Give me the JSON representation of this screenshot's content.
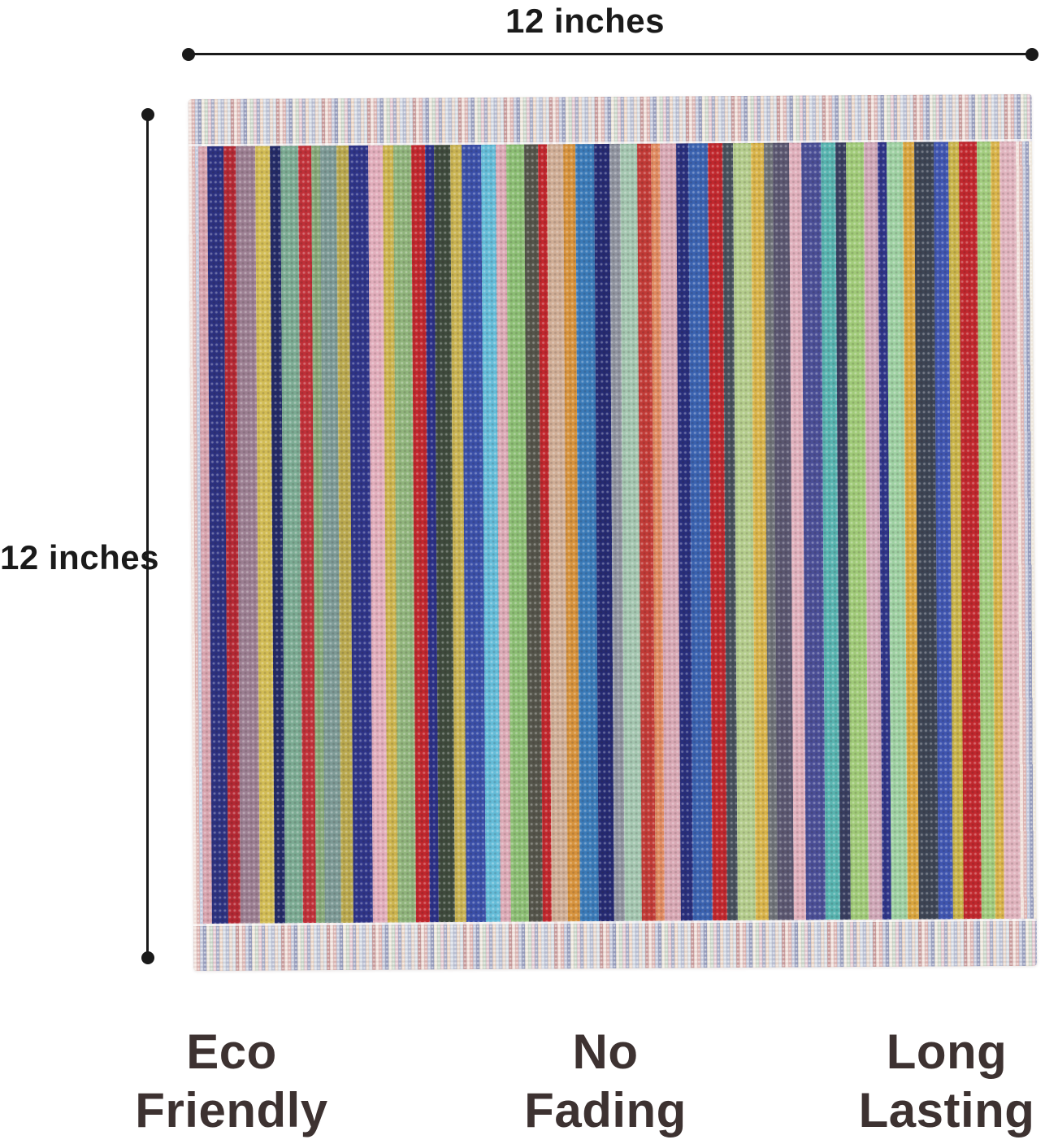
{
  "dimensions": {
    "width_label": "12 inches",
    "height_label": "12 inches"
  },
  "features": [
    {
      "line1": "Eco",
      "line2": "Friendly"
    },
    {
      "line1": "No",
      "line2": "Fading"
    },
    {
      "line1": "Long",
      "line2": "Lasting"
    }
  ],
  "colors": {
    "background": "#ffffff",
    "dimension_ink": "#1a1a1a",
    "feature_text": "#3d3231"
  },
  "towel": {
    "hem_stripes": [
      "#e9d2ca",
      "#cf9490",
      "#a8b0cc",
      "#666f9e",
      "#e6dccb",
      "#b2c6b2",
      "#d8b0bc",
      "#8088ae",
      "#e3c3ac",
      "#bfc8d8",
      "#99a2c0",
      "#dcc4b4",
      "#c4ced8",
      "#b06a6a"
    ],
    "terry_stripes": [
      "#d8a4ae",
      "#2c3180",
      "#b42833",
      "#9c7f92",
      "#d2bc55",
      "#232a66",
      "#7cab93",
      "#c03038",
      "#86a878",
      "#7d9a96",
      "#b9a84e",
      "#2e3488",
      "#e2aebc",
      "#ccb44e",
      "#90b47c",
      "#c1272d",
      "#2b3086",
      "#3e4a3c",
      "#c9b352",
      "#3a4fa8",
      "#64bcd8",
      "#dcaab6",
      "#8cbe74",
      "#54544a",
      "#c1272d",
      "#d0ae96",
      "#d6923c",
      "#3a7ab8",
      "#252a72",
      "#9094a0",
      "#a4c6b0",
      "#c13a36",
      "#e08a60",
      "#d8a8b4",
      "#282e7c",
      "#3a62b0",
      "#c1272d",
      "#46505c",
      "#b4cc8c",
      "#d9b44a",
      "#6e7278",
      "#5a5670",
      "#e0b0bc",
      "#4a4e96",
      "#58b4b0",
      "#383e60",
      "#a0ca78",
      "#d0a8b8",
      "#2e3488",
      "#9ed0a2",
      "#d9a53e",
      "#3c4454",
      "#3f55b0",
      "#c9b44a",
      "#c1272d",
      "#a2cc7e",
      "#d9b44a",
      "#e0b4be"
    ]
  }
}
